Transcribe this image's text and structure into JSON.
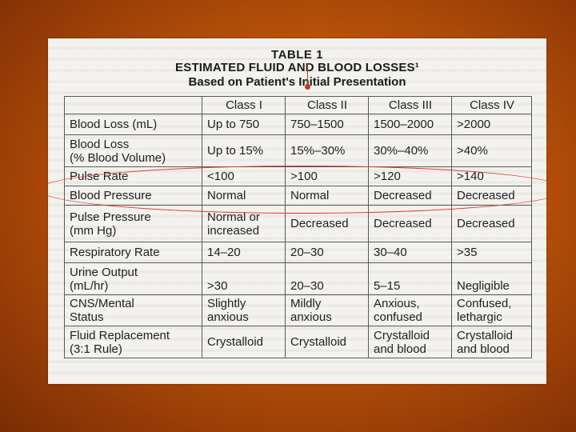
{
  "title": {
    "line1": "TABLE 1",
    "line2": "ESTIMATED FLUID AND BLOOD LOSSES¹",
    "line3": "Based on Patient's Initial Presentation"
  },
  "table": {
    "headers": [
      "",
      "Class I",
      "Class II",
      "Class III",
      "Class IV"
    ],
    "rows": [
      [
        "Blood Loss (mL)",
        "Up to 750",
        "750–1500",
        "1500–2000",
        ">2000"
      ],
      [
        "Blood Loss\n(% Blood Volume)",
        "Up to 15%",
        "15%–30%",
        "30%–40%",
        ">40%"
      ],
      [
        "Pulse Rate",
        "<100",
        ">100",
        ">120",
        ">140"
      ],
      [
        "Blood Pressure",
        "Normal",
        "Normal",
        "Decreased",
        "Decreased"
      ],
      [
        "Pulse Pressure\n(mm Hg)",
        "Normal or\nincreased",
        "Decreased",
        "Decreased",
        "Decreased"
      ],
      [
        "Respiratory Rate",
        "14–20",
        "20–30",
        "30–40",
        ">35"
      ],
      [
        "Urine Output\n(mL/hr)",
        ">30",
        "20–30",
        "5–15",
        "Negligible"
      ],
      [
        "CNS/Mental\nStatus",
        "Slightly\nanxious",
        "Mildly\nanxious",
        "Anxious,\nconfused",
        "Confused,\nlethargic"
      ],
      [
        "Fluid Replacement\n(3:1 Rule)",
        "Crystalloid",
        "Crystalloid",
        "Crystalloid\nand blood",
        "Crystalloid\nand blood"
      ]
    ]
  },
  "colors": {
    "background": "#c35d0b",
    "paper": "#f3f2ee",
    "annotation": "#e03030"
  }
}
